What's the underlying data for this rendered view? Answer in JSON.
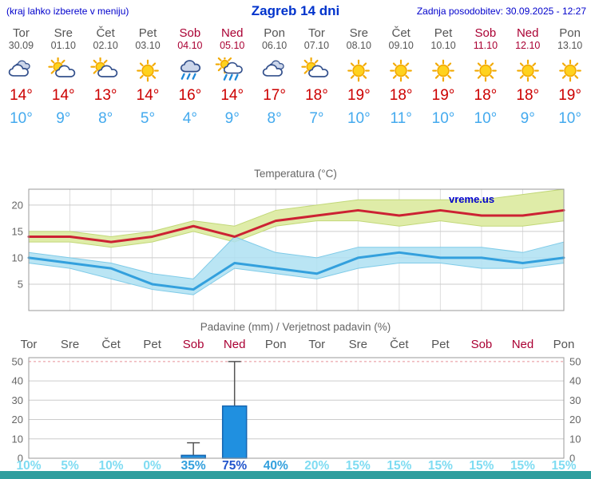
{
  "header": {
    "menu_hint": "(kraj lahko izberete v meniju)",
    "title": "Zagreb 14 dni",
    "last_update": "Zadnja posodobitev: 30.09.2025 - 12:27"
  },
  "forecast": {
    "days": [
      {
        "name": "Tor",
        "date": "30.09",
        "icon": "cloudy",
        "tmax": "14°",
        "tmin": "10°"
      },
      {
        "name": "Sre",
        "date": "01.10",
        "icon": "partly-cloudy",
        "tmax": "14°",
        "tmin": "9°"
      },
      {
        "name": "Čet",
        "date": "02.10",
        "icon": "partly-cloudy",
        "tmax": "13°",
        "tmin": "8°"
      },
      {
        "name": "Pet",
        "date": "03.10",
        "icon": "sunny",
        "tmax": "14°",
        "tmin": "5°"
      },
      {
        "name": "Sob",
        "date": "04.10",
        "icon": "rain",
        "tmax": "16°",
        "tmin": "4°"
      },
      {
        "name": "Ned",
        "date": "05.10",
        "icon": "rain-sun",
        "tmax": "14°",
        "tmin": "9°"
      },
      {
        "name": "Pon",
        "date": "06.10",
        "icon": "cloudy",
        "tmax": "17°",
        "tmin": "8°"
      },
      {
        "name": "Tor",
        "date": "07.10",
        "icon": "partly-cloudy",
        "tmax": "18°",
        "tmin": "7°"
      },
      {
        "name": "Sre",
        "date": "08.10",
        "icon": "sunny",
        "tmax": "19°",
        "tmin": "10°"
      },
      {
        "name": "Čet",
        "date": "09.10",
        "icon": "sunny",
        "tmax": "18°",
        "tmin": "11°"
      },
      {
        "name": "Pet",
        "date": "10.10",
        "icon": "sunny",
        "tmax": "19°",
        "tmin": "10°"
      },
      {
        "name": "Sob",
        "date": "11.10",
        "icon": "sunny",
        "tmax": "18°",
        "tmin": "10°"
      },
      {
        "name": "Ned",
        "date": "12.10",
        "icon": "sunny",
        "tmax": "18°",
        "tmin": "9°"
      },
      {
        "name": "Pon",
        "date": "13.10",
        "icon": "sunny",
        "tmax": "19°",
        "tmin": "10°"
      }
    ]
  },
  "chart_data": [
    {
      "type": "line",
      "title": "Temperatura (°C)",
      "watermark": "vreme.us",
      "categories": [
        "Tor 30.09",
        "Sre 01.10",
        "Čet 02.10",
        "Pet 03.10",
        "Sob 04.10",
        "Ned 05.10",
        "Pon 06.10",
        "Tor 07.10",
        "Sre 08.10",
        "Čet 09.10",
        "Pet 10.10",
        "Sob 11.10",
        "Ned 12.10",
        "Pon 13.10"
      ],
      "series": [
        {
          "name": "max temperature",
          "color": "#cc2233",
          "values": [
            14,
            14,
            13,
            14,
            16,
            14,
            17,
            18,
            19,
            18,
            19,
            18,
            18,
            19
          ]
        },
        {
          "name": "min temperature",
          "color": "#33a0dd",
          "values": [
            10,
            9,
            8,
            5,
            4,
            9,
            8,
            7,
            10,
            11,
            10,
            10,
            9,
            10
          ]
        }
      ],
      "bands": [
        {
          "name": "max temperature range",
          "color": "#dfeca8",
          "edge": "#c2d878",
          "upper": [
            15,
            15,
            14,
            15,
            17,
            16,
            19,
            20,
            21,
            21,
            21,
            21,
            22,
            23
          ],
          "lower": [
            13,
            13,
            12,
            13,
            15,
            13,
            16,
            17,
            17,
            16,
            17,
            16,
            16,
            17
          ]
        },
        {
          "name": "min temperature range",
          "color": "#aee0f2",
          "edge": "#7fcbe8",
          "upper": [
            11,
            10,
            9,
            7,
            6,
            14,
            11,
            10,
            12,
            12,
            12,
            12,
            11,
            13
          ],
          "lower": [
            9,
            8,
            6,
            4,
            3,
            8,
            7,
            6,
            8,
            9,
            9,
            8,
            8,
            9
          ]
        }
      ],
      "ylim": [
        0,
        23
      ],
      "yticks": [
        5,
        10,
        15,
        20
      ],
      "grid": true,
      "legend": "none"
    },
    {
      "type": "bar",
      "title": "Padavine (mm) / Verjetnost padavin (%)",
      "categories": [
        "Tor",
        "Sre",
        "Čet",
        "Pet",
        "Sob",
        "Ned",
        "Pon",
        "Tor",
        "Sre",
        "Čet",
        "Pet",
        "Sob",
        "Ned",
        "Pon"
      ],
      "values": [
        0,
        0,
        0,
        0,
        1.5,
        27,
        0,
        0,
        0,
        0,
        0,
        0,
        0,
        0
      ],
      "whisker_max": [
        0,
        0,
        0,
        0,
        8,
        50,
        0,
        0,
        0,
        0,
        0,
        0,
        0,
        0
      ],
      "probabilities": [
        "10%",
        "5%",
        "10%",
        "0%",
        "35%",
        "75%",
        "40%",
        "20%",
        "15%",
        "15%",
        "15%",
        "15%",
        "15%",
        "15%"
      ],
      "ylim": [
        0,
        52
      ],
      "yticks": [
        0,
        10,
        20,
        30,
        40,
        50
      ],
      "bar_color": "#2090e0",
      "bar_edge": "#1565b0",
      "grid": true,
      "legend": "none"
    }
  ],
  "colors": {
    "header_blue": "#0000cc",
    "title_blue": "#0033cc",
    "weekday": "#555555",
    "weekend": "#aa0033",
    "tmax_red": "#cc0000",
    "tmin_blue": "#44aaee",
    "prob_low": "#7fdcf2",
    "prob_mid": "#33a0dd",
    "prob_high": "#2255cc",
    "footer_teal": "#2f9e9e",
    "grid_gray": "#cccccc",
    "axis_text": "#666666"
  }
}
